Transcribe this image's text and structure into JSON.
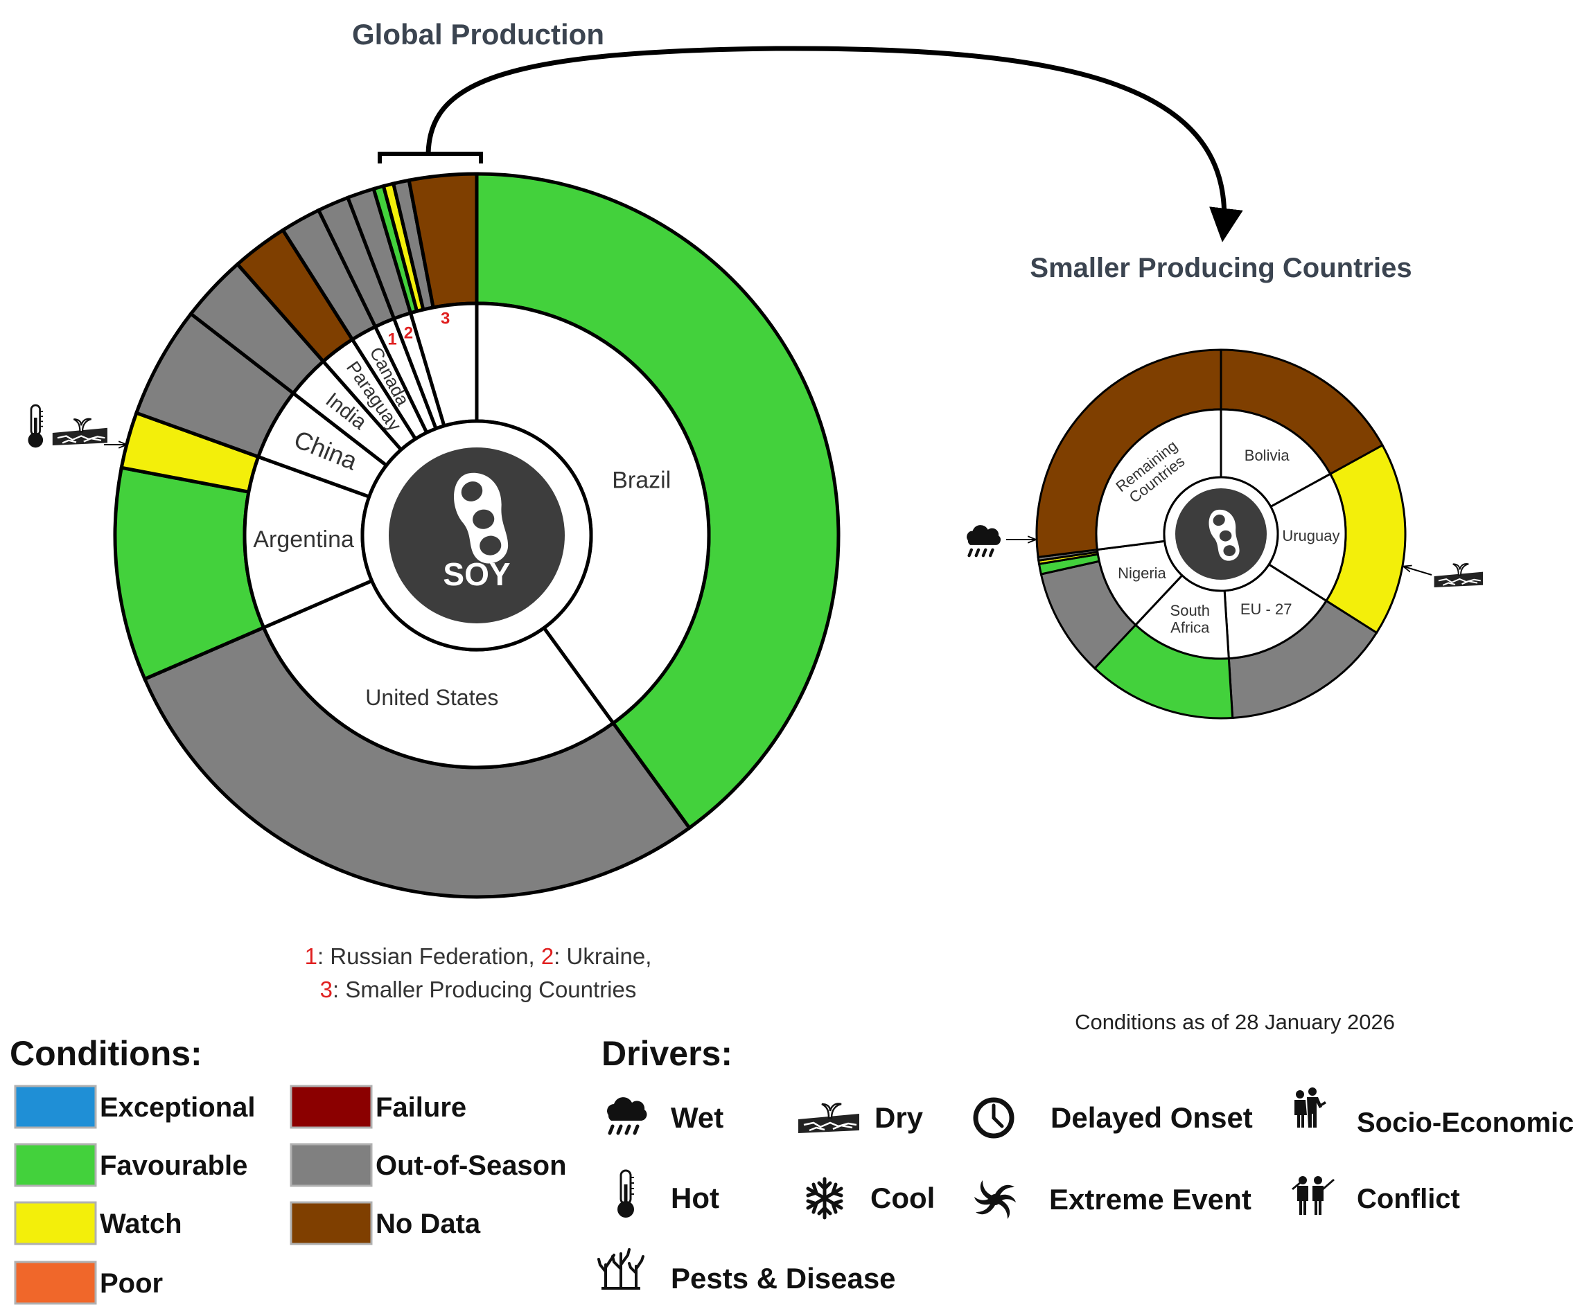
{
  "chart_data": [
    {
      "type": "pie",
      "title": "Global Production",
      "center_label": "SOY",
      "inner_ring": [
        {
          "label": "Brazil",
          "share": 40.0
        },
        {
          "label": "United States",
          "share": 28.5
        },
        {
          "label": "Argentina",
          "share": 12.0
        },
        {
          "label": "China",
          "share": 5.0
        },
        {
          "label": "India",
          "share": 3.0
        },
        {
          "label": "Paraguay",
          "share": 2.5
        },
        {
          "label": "Canada",
          "share": 1.8
        },
        {
          "label": "1",
          "share": 1.4
        },
        {
          "label": "2",
          "share": 1.2
        },
        {
          "label": "3",
          "share": 4.6
        }
      ],
      "outer_ring": [
        {
          "parent": "Brazil",
          "condition": "Favourable",
          "share": 40.0
        },
        {
          "parent": "United States",
          "condition": "Out-of-Season",
          "share": 28.5
        },
        {
          "parent": "Argentina",
          "condition": "Favourable",
          "share": 9.5
        },
        {
          "parent": "Argentina",
          "condition": "Watch",
          "share": 2.5
        },
        {
          "parent": "China",
          "condition": "Out-of-Season",
          "share": 5.0
        },
        {
          "parent": "India",
          "condition": "Out-of-Season",
          "share": 3.0
        },
        {
          "parent": "Paraguay",
          "condition": "No Data",
          "share": 2.5
        },
        {
          "parent": "Canada",
          "condition": "Out-of-Season",
          "share": 1.8
        },
        {
          "parent": "1",
          "condition": "Out-of-Season",
          "share": 1.4
        },
        {
          "parent": "2",
          "condition": "Out-of-Season",
          "share": 1.2
        },
        {
          "parent": "3",
          "condition": "Favourable",
          "share": 0.45
        },
        {
          "parent": "3",
          "condition": "Watch",
          "share": 0.45
        },
        {
          "parent": "3",
          "condition": "Out-of-Season",
          "share": 0.7
        },
        {
          "parent": "3",
          "condition": "No Data",
          "share": 3.0
        }
      ],
      "drivers": [
        {
          "parent": "Argentina",
          "icons": [
            "hot-icon",
            "dry-icon"
          ]
        }
      ]
    },
    {
      "type": "pie",
      "title": "Smaller Producing Countries",
      "inner_ring": [
        {
          "label": "Bolivia",
          "share": 17.0
        },
        {
          "label": "Uruguay",
          "share": 17.0
        },
        {
          "label": "EU - 27",
          "share": 15.0
        },
        {
          "label": "South Africa",
          "share": 13.0
        },
        {
          "label": "Nigeria",
          "share": 11.0
        },
        {
          "label": "Remaining Countries",
          "share": 27.0
        }
      ],
      "outer_ring": [
        {
          "parent": "Bolivia",
          "condition": "No Data",
          "share": 17.0
        },
        {
          "parent": "Uruguay",
          "condition": "Watch",
          "share": 17.0
        },
        {
          "parent": "EU - 27",
          "condition": "Out-of-Season",
          "share": 15.0
        },
        {
          "parent": "South Africa",
          "condition": "Favourable",
          "share": 13.0
        },
        {
          "parent": "Nigeria",
          "condition": "Out-of-Season",
          "share": 9.5
        },
        {
          "parent": "Nigeria",
          "condition": "Favourable",
          "share": 0.9
        },
        {
          "parent": "Nigeria",
          "condition": "Watch",
          "share": 0.3
        },
        {
          "parent": "Nigeria",
          "condition": "Out-of-Season",
          "share": 0.3
        },
        {
          "parent": "Remaining Countries",
          "condition": "No Data",
          "share": 27.0
        }
      ],
      "drivers": [
        {
          "parent": "Uruguay",
          "icons": [
            "dry-icon"
          ]
        },
        {
          "parent": "Nigeria",
          "icons": [
            "wet-icon"
          ]
        }
      ]
    }
  ],
  "footnote": {
    "n1": "1",
    "t1": ": Russian Federation, ",
    "n2": "2",
    "t2": ": Ukraine,",
    "n3": "3",
    "t3": ": Smaller Producing Countries"
  },
  "date_note": "Conditions as of 28 January 2026",
  "legend": {
    "conditions_title": "Conditions:",
    "conditions": [
      {
        "label": "Exceptional",
        "color": "#1f8fd6"
      },
      {
        "label": "Favourable",
        "color": "#43d13c"
      },
      {
        "label": "Watch",
        "color": "#f3ef0a"
      },
      {
        "label": "Poor",
        "color": "#f0672a"
      },
      {
        "label": "Failure",
        "color": "#8b0000"
      },
      {
        "label": "Out-of-Season",
        "color": "#808080"
      },
      {
        "label": "No Data",
        "color": "#7f3f00"
      }
    ],
    "drivers_title": "Drivers:",
    "drivers": [
      {
        "label": "Wet",
        "icon": "wet-icon"
      },
      {
        "label": "Dry",
        "icon": "dry-icon"
      },
      {
        "label": "Delayed Onset",
        "icon": "delayed-onset-icon"
      },
      {
        "label": "Socio-Economic",
        "icon": "socio-economic-icon"
      },
      {
        "label": "Hot",
        "icon": "hot-icon"
      },
      {
        "label": "Cool",
        "icon": "cool-icon"
      },
      {
        "label": "Extreme Event",
        "icon": "extreme-event-icon"
      },
      {
        "label": "Conflict",
        "icon": "conflict-icon"
      },
      {
        "label": "Pests & Disease",
        "icon": "pests-disease-icon"
      }
    ]
  }
}
